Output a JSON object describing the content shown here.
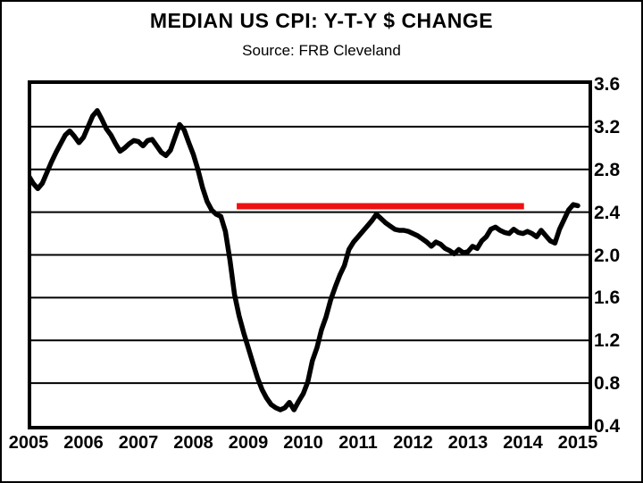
{
  "header": {
    "title": "MEDIAN US CPI: Y-T-Y $ CHANGE",
    "subtitle": "Source: FRB Cleveland"
  },
  "colors": {
    "series_line": "#000000",
    "reference_line": "#ee1111",
    "grid": "#000000",
    "frame": "#000000",
    "background": "#ffffff"
  },
  "chart_data": {
    "type": "line",
    "title": "MEDIAN US CPI: Y-T-Y $ CHANGE",
    "subtitle": "Source: FRB Cleveland",
    "xlabel": "",
    "ylabel": "",
    "grid": "horizontal",
    "y_axis_side": "right",
    "ylim": [
      0.4,
      3.6
    ],
    "y_ticks": [
      3.6,
      3.2,
      2.8,
      2.4,
      2.0,
      1.6,
      1.2,
      0.8,
      0.4
    ],
    "y_tick_labels": [
      "3.6",
      "3.2",
      "2.8",
      "2.4",
      "2.0",
      "1.6",
      "1.2",
      "0.8",
      "0.4"
    ],
    "x_tick_years": [
      2005,
      2006,
      2007,
      2008,
      2009,
      2010,
      2011,
      2012,
      2013,
      2014,
      2015
    ],
    "x_tick_labels": [
      "2005",
      "2006",
      "2007",
      "2008",
      "2009",
      "2010",
      "2011",
      "2012",
      "2013",
      "2014",
      "2015"
    ],
    "series": [
      {
        "name": "Median US CPI y-t-y change",
        "frequency": "monthly",
        "start": "2005-01",
        "end": "2015-01",
        "values": [
          2.74,
          2.67,
          2.62,
          2.67,
          2.77,
          2.87,
          2.96,
          3.04,
          3.12,
          3.16,
          3.11,
          3.05,
          3.1,
          3.2,
          3.3,
          3.35,
          3.27,
          3.18,
          3.12,
          3.04,
          2.97,
          3.0,
          3.04,
          3.07,
          3.06,
          3.02,
          3.07,
          3.08,
          3.02,
          2.96,
          2.93,
          2.98,
          3.1,
          3.22,
          3.17,
          3.05,
          2.94,
          2.8,
          2.63,
          2.5,
          2.42,
          2.38,
          2.36,
          2.22,
          1.95,
          1.63,
          1.43,
          1.27,
          1.13,
          0.99,
          0.85,
          0.74,
          0.66,
          0.6,
          0.57,
          0.55,
          0.57,
          0.62,
          0.55,
          0.63,
          0.7,
          0.81,
          1.01,
          1.13,
          1.3,
          1.42,
          1.58,
          1.7,
          1.81,
          1.9,
          2.05,
          2.12,
          2.17,
          2.22,
          2.27,
          2.32,
          2.38,
          2.34,
          2.3,
          2.27,
          2.24,
          2.23,
          2.23,
          2.22,
          2.2,
          2.18,
          2.15,
          2.12,
          2.08,
          2.12,
          2.1,
          2.06,
          2.04,
          2.01,
          2.05,
          2.02,
          2.03,
          2.08,
          2.06,
          2.13,
          2.17,
          2.24,
          2.26,
          2.23,
          2.21,
          2.2,
          2.24,
          2.21,
          2.2,
          2.22,
          2.2,
          2.17,
          2.23,
          2.18,
          2.13,
          2.11,
          2.24,
          2.33,
          2.42,
          2.47,
          2.46
        ]
      }
    ],
    "reference_line": {
      "value": 2.455,
      "x_start_year": 2008.79,
      "x_end_year": 2014.02,
      "color": "#ee1111"
    }
  }
}
